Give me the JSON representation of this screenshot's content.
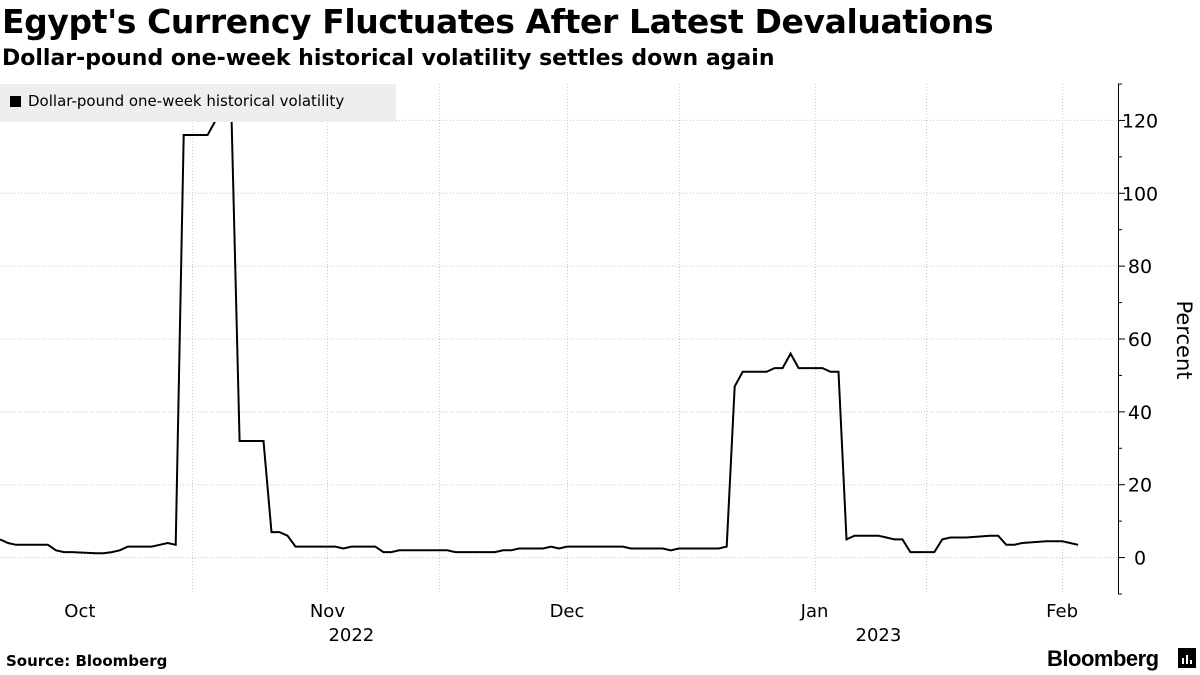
{
  "chart_data": {
    "type": "line",
    "title": "Egypt's Currency Fluctuates After Latest Devaluations",
    "subtitle": "Dollar-pound one-week historical volatility settles down again",
    "ylabel": "Percent",
    "ylim": [
      -10,
      130
    ],
    "yticks": [
      0,
      20,
      40,
      60,
      80,
      100,
      120
    ],
    "xlim": [
      "2022-09-21",
      "2023-02-08"
    ],
    "month_ticks": [
      {
        "label": "Oct",
        "date": "2022-10-01"
      },
      {
        "label": "Nov",
        "date": "2022-11-01"
      },
      {
        "label": "Dec",
        "date": "2022-12-01"
      },
      {
        "label": "Jan",
        "date": "2023-01-01"
      },
      {
        "label": "Feb",
        "date": "2023-02-01"
      }
    ],
    "year_labels": [
      {
        "label": "2022",
        "date": "2022-11-04"
      },
      {
        "label": "2023",
        "date": "2023-01-09"
      }
    ],
    "gridlines": [
      "2022-10-15",
      "2022-11-01",
      "2022-11-15",
      "2022-12-01",
      "2022-12-15",
      "2023-01-01",
      "2023-01-15",
      "2023-02-01"
    ],
    "grid": true,
    "legend_position": "top-left",
    "series": [
      {
        "name": "Dollar-pound one-week historical volatility",
        "color": "#000000",
        "points": [
          [
            "2022-09-21",
            5
          ],
          [
            "2022-09-22",
            4
          ],
          [
            "2022-09-23",
            3.5
          ],
          [
            "2022-09-26",
            3.5
          ],
          [
            "2022-09-27",
            3.5
          ],
          [
            "2022-09-28",
            2
          ],
          [
            "2022-09-29",
            1.5
          ],
          [
            "2022-09-30",
            1.5
          ],
          [
            "2022-10-03",
            1.2
          ],
          [
            "2022-10-04",
            1.2
          ],
          [
            "2022-10-05",
            1.5
          ],
          [
            "2022-10-06",
            2
          ],
          [
            "2022-10-07",
            3
          ],
          [
            "2022-10-10",
            3
          ],
          [
            "2022-10-11",
            3.5
          ],
          [
            "2022-10-12",
            4
          ],
          [
            "2022-10-13",
            3.5
          ],
          [
            "2022-10-14",
            116
          ],
          [
            "2022-10-17",
            116
          ],
          [
            "2022-10-18",
            120
          ],
          [
            "2022-10-19",
            120
          ],
          [
            "2022-10-20",
            120
          ],
          [
            "2022-10-21",
            32
          ],
          [
            "2022-10-24",
            32
          ],
          [
            "2022-10-25",
            7
          ],
          [
            "2022-10-26",
            7
          ],
          [
            "2022-10-27",
            6
          ],
          [
            "2022-10-28",
            3
          ],
          [
            "2022-10-31",
            3
          ],
          [
            "2022-11-01",
            3
          ],
          [
            "2022-11-02",
            3
          ],
          [
            "2022-11-03",
            2.5
          ],
          [
            "2022-11-04",
            3
          ],
          [
            "2022-11-07",
            3
          ],
          [
            "2022-11-08",
            1.5
          ],
          [
            "2022-11-09",
            1.5
          ],
          [
            "2022-11-10",
            2
          ],
          [
            "2022-11-11",
            2
          ],
          [
            "2022-11-14",
            2
          ],
          [
            "2022-11-15",
            2
          ],
          [
            "2022-11-16",
            2
          ],
          [
            "2022-11-17",
            1.5
          ],
          [
            "2022-11-18",
            1.5
          ],
          [
            "2022-11-21",
            1.5
          ],
          [
            "2022-11-22",
            1.5
          ],
          [
            "2022-11-23",
            2
          ],
          [
            "2022-11-24",
            2
          ],
          [
            "2022-11-25",
            2.5
          ],
          [
            "2022-11-28",
            2.5
          ],
          [
            "2022-11-29",
            3
          ],
          [
            "2022-11-30",
            2.5
          ],
          [
            "2022-12-01",
            3
          ],
          [
            "2022-12-02",
            3
          ],
          [
            "2022-12-05",
            3
          ],
          [
            "2022-12-06",
            3
          ],
          [
            "2022-12-07",
            3
          ],
          [
            "2022-12-08",
            3
          ],
          [
            "2022-12-09",
            2.5
          ],
          [
            "2022-12-12",
            2.5
          ],
          [
            "2022-12-13",
            2.5
          ],
          [
            "2022-12-14",
            2
          ],
          [
            "2022-12-15",
            2.5
          ],
          [
            "2022-12-16",
            2.5
          ],
          [
            "2022-12-19",
            2.5
          ],
          [
            "2022-12-20",
            2.5
          ],
          [
            "2022-12-21",
            3
          ],
          [
            "2022-12-22",
            47
          ],
          [
            "2022-12-23",
            51
          ],
          [
            "2022-12-26",
            51
          ],
          [
            "2022-12-27",
            52
          ],
          [
            "2022-12-28",
            52
          ],
          [
            "2022-12-29",
            56
          ],
          [
            "2022-12-30",
            52
          ],
          [
            "2023-01-02",
            52
          ],
          [
            "2023-01-03",
            51
          ],
          [
            "2023-01-04",
            51
          ],
          [
            "2023-01-05",
            5
          ],
          [
            "2023-01-06",
            6
          ],
          [
            "2023-01-09",
            6
          ],
          [
            "2023-01-10",
            5.5
          ],
          [
            "2023-01-11",
            5
          ],
          [
            "2023-01-12",
            5
          ],
          [
            "2023-01-13",
            1.5
          ],
          [
            "2023-01-16",
            1.5
          ],
          [
            "2023-01-17",
            5
          ],
          [
            "2023-01-18",
            5.5
          ],
          [
            "2023-01-19",
            5.5
          ],
          [
            "2023-01-20",
            5.5
          ],
          [
            "2023-01-23",
            6
          ],
          [
            "2023-01-24",
            6
          ],
          [
            "2023-01-25",
            3.5
          ],
          [
            "2023-01-26",
            3.5
          ],
          [
            "2023-01-27",
            4
          ],
          [
            "2023-01-30",
            4.5
          ],
          [
            "2023-01-31",
            4.5
          ],
          [
            "2023-02-01",
            4.5
          ],
          [
            "2023-02-02",
            4
          ],
          [
            "2023-02-03",
            3.5
          ]
        ]
      }
    ]
  },
  "footer": {
    "source": "Source: Bloomberg",
    "brand": "Bloomberg"
  }
}
